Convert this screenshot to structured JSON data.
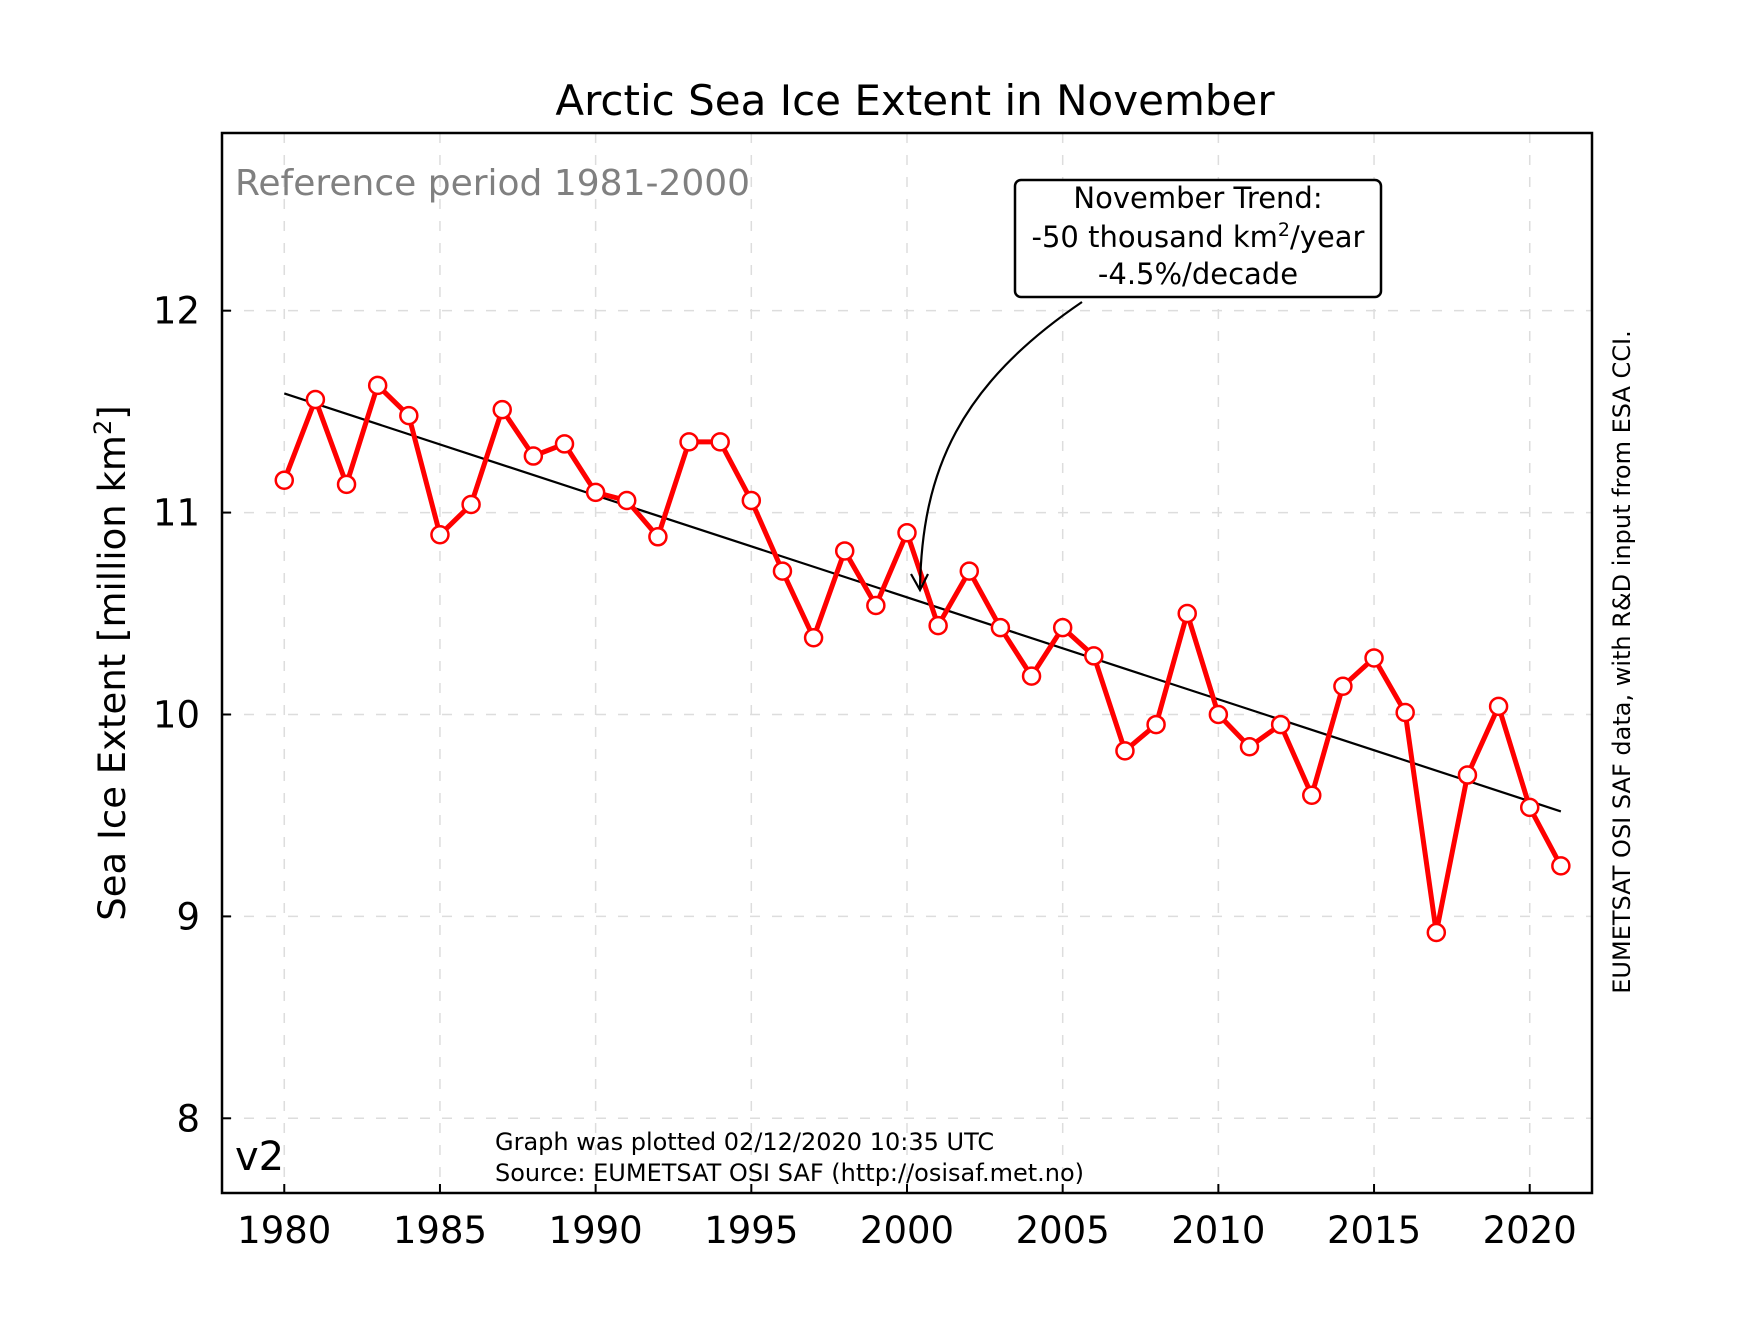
{
  "chart_data": {
    "type": "line",
    "title": "Arctic Sea Ice Extent in November",
    "ylabel": "Sea Ice Extent [million km",
    "ylabel_sup": "2",
    "ylabel_close": "]",
    "xlim": [
      1978,
      2022
    ],
    "ylim": [
      7.63,
      12.88
    ],
    "xticks": [
      1980,
      1985,
      1990,
      1995,
      2000,
      2005,
      2010,
      2015,
      2020
    ],
    "yticks": [
      8,
      9,
      10,
      11,
      12
    ],
    "grid": true,
    "series": [
      {
        "color": "#ff0000",
        "x": [
          1980,
          1981,
          1982,
          1983,
          1984,
          1985,
          1986,
          1987,
          1988,
          1989,
          1990,
          1991,
          1992,
          1993,
          1994,
          1995,
          1996,
          1997,
          1998,
          1999,
          2000,
          2001,
          2002,
          2003,
          2004,
          2005,
          2006,
          2007,
          2008,
          2009,
          2010,
          2011,
          2012,
          2013,
          2014,
          2015,
          2016,
          2017,
          2018,
          2019,
          2020,
          2021
        ],
        "y": [
          11.16,
          11.56,
          11.14,
          11.63,
          11.48,
          10.89,
          11.04,
          11.51,
          11.28,
          11.34,
          11.1,
          11.06,
          10.88,
          11.35,
          11.35,
          11.06,
          10.71,
          10.38,
          10.81,
          10.54,
          10.9,
          10.44,
          10.71,
          10.43,
          10.19,
          10.43,
          10.29,
          9.82,
          9.95,
          10.5,
          10.0,
          9.84,
          9.95,
          9.6,
          10.14,
          10.28,
          10.01,
          8.92,
          9.7,
          10.04,
          9.54,
          9.25
        ]
      }
    ],
    "trend": {
      "color": "#000000",
      "x": [
        1980,
        2021
      ],
      "y": [
        11.59,
        9.52
      ]
    },
    "annotations": {
      "reference": "Reference period 1981-2000",
      "trend_line1": "November Trend:",
      "trend_line2_pre": "-50 thousand km",
      "trend_line2_sup": "2",
      "trend_line2_post": "/year",
      "trend_line3": "-4.5%/decade",
      "version": "v2",
      "plotted": "Graph was plotted 02/12/2020 10:35 UTC",
      "source": "Source: EUMETSAT OSI SAF (http://osisaf.met.no)",
      "credit": "EUMETSAT OSI SAF data, with R&D input from ESA CCI."
    }
  }
}
